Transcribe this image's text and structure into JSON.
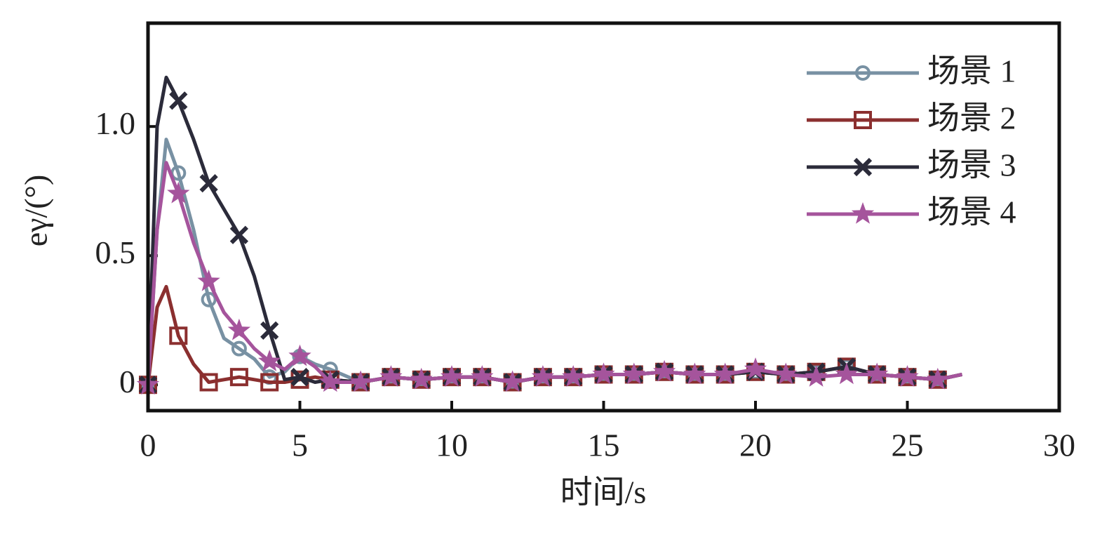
{
  "chart_data": {
    "type": "line",
    "xlabel": "时间/s",
    "ylabel": "eγ/(°)",
    "x": [
      0,
      0.3,
      0.6,
      1,
      1.5,
      2,
      2.5,
      3,
      3.5,
      4,
      4.5,
      5,
      5.5,
      6,
      7,
      8,
      9,
      10,
      11,
      12,
      13,
      14,
      15,
      16,
      17,
      18,
      19,
      20,
      21,
      22,
      23,
      24,
      25,
      26,
      26.8
    ],
    "series": [
      {
        "name": "场景 1",
        "color": "#7891a3",
        "marker": "circle",
        "values": [
          0,
          0.6,
          0.95,
          0.82,
          0.6,
          0.33,
          0.18,
          0.14,
          0.1,
          0.03,
          0.05,
          0.11,
          0.08,
          0.06,
          0.01,
          0.03,
          0.02,
          0.03,
          0.03,
          0.01,
          0.03,
          0.03,
          0.04,
          0.04,
          0.05,
          0.04,
          0.04,
          0.05,
          0.04,
          0.05,
          0.07,
          0.04,
          0.03,
          0.02,
          0.04
        ]
      },
      {
        "name": "场景 2",
        "color": "#8b2f2f",
        "marker": "square",
        "values": [
          0,
          0.3,
          0.38,
          0.19,
          0.08,
          0.01,
          0.02,
          0.03,
          0.02,
          0.01,
          0.01,
          0.02,
          0.03,
          0.02,
          0.01,
          0.03,
          0.02,
          0.03,
          0.03,
          0.01,
          0.03,
          0.03,
          0.04,
          0.04,
          0.05,
          0.04,
          0.04,
          0.05,
          0.04,
          0.05,
          0.07,
          0.04,
          0.03,
          0.02,
          0.04
        ]
      },
      {
        "name": "场景 3",
        "color": "#2b2b3a",
        "marker": "x",
        "values": [
          0,
          1.0,
          1.19,
          1.1,
          0.95,
          0.78,
          0.68,
          0.58,
          0.42,
          0.21,
          0.02,
          0.03,
          0.01,
          0.02,
          0.01,
          0.03,
          0.02,
          0.03,
          0.03,
          0.01,
          0.03,
          0.03,
          0.04,
          0.04,
          0.05,
          0.04,
          0.04,
          0.05,
          0.04,
          0.05,
          0.07,
          0.04,
          0.03,
          0.02,
          0.04
        ]
      },
      {
        "name": "场景 4",
        "color": "#a5549c",
        "marker": "star",
        "values": [
          0,
          0.6,
          0.86,
          0.74,
          0.55,
          0.4,
          0.28,
          0.21,
          0.14,
          0.09,
          0.06,
          0.11,
          0.07,
          0.01,
          0.01,
          0.03,
          0.02,
          0.03,
          0.03,
          0.01,
          0.03,
          0.03,
          0.04,
          0.04,
          0.05,
          0.04,
          0.04,
          0.06,
          0.04,
          0.03,
          0.04,
          0.04,
          0.03,
          0.02,
          0.04
        ]
      }
    ],
    "xlim": [
      0,
      30
    ],
    "xticks": [
      0,
      5,
      10,
      15,
      20,
      25,
      30
    ],
    "ylim": [
      -0.1,
      1.4
    ],
    "yticks": [
      0,
      0.5,
      {
        "value": 1,
        "label": "1.0"
      }
    ],
    "legend": "upper right",
    "grid": false
  }
}
